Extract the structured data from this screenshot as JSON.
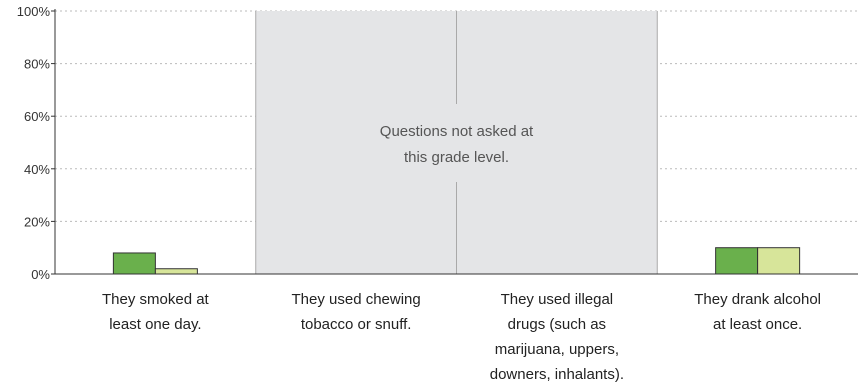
{
  "chart_data": {
    "type": "bar",
    "categories": [
      "They smoked at least one day.",
      "They used chewing tobacco or snuff.",
      "They used illegal drugs (such as marijuana, uppers, downers, inhalants).",
      "They drank alcohol at least once."
    ],
    "category_label_lines": [
      [
        "They smoked at",
        "least one day."
      ],
      [
        "They used chewing",
        "tobacco or snuff."
      ],
      [
        "They used illegal",
        "drugs (such as",
        "marijuana, uppers,",
        "downers, inhalants)."
      ],
      [
        "They drank alcohol",
        "at least once."
      ]
    ],
    "series": [
      {
        "values": [
          8,
          null,
          null,
          10
        ],
        "color": "#6ab04c"
      },
      {
        "values": [
          2,
          null,
          null,
          10
        ],
        "color": "#d7e59a"
      }
    ],
    "ylim": [
      0,
      100
    ],
    "yticks": [
      0,
      20,
      40,
      60,
      80,
      100
    ],
    "ytick_labels": [
      "0%",
      "20%",
      "40%",
      "60%",
      "80%",
      "100%"
    ],
    "grid": true,
    "not_asked_categories": [
      1,
      2
    ],
    "not_asked_note_lines": [
      "Questions not asked at",
      "this grade level."
    ]
  }
}
